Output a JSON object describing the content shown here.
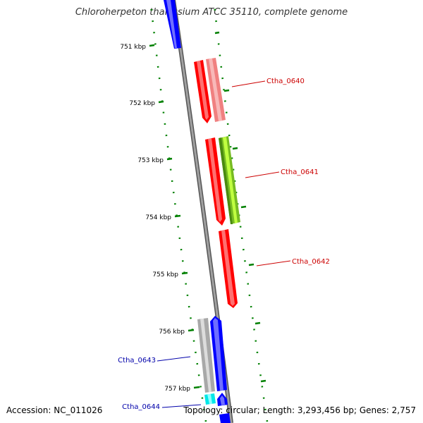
{
  "title": "Chloroherpeton thalassium ATCC 35110, complete genome",
  "accession_label": "Accession:",
  "accession": "NC_011026",
  "topology_label": "Topology:",
  "topology": "circular",
  "length_label": "Length:",
  "length": "3,293,456 bp",
  "genes_label": "Genes:",
  "genes": "2,757",
  "scale_labels": [
    "751 kbp",
    "752 kbp",
    "753 kbp",
    "754 kbp",
    "755 kbp",
    "756 kbp",
    "757 kbp"
  ],
  "gene_labels": [
    {
      "name": "Ctha_0640",
      "color": "#cc0000"
    },
    {
      "name": "Ctha_0641",
      "color": "#cc0000"
    },
    {
      "name": "Ctha_0642",
      "color": "#cc0000"
    },
    {
      "name": "Ctha_0643",
      "color": "#0000aa"
    },
    {
      "name": "Ctha_0644",
      "color": "#0000aa"
    }
  ],
  "colors": {
    "backbone": "#808080",
    "tick": "#008000",
    "red_gene": "#ff0000",
    "pink_gene": "#f08080",
    "green_gene": "#99dd22",
    "blue_gene": "#0000ff",
    "gray_gene": "#b0b0b0",
    "cyan_gene": "#00ffff"
  }
}
